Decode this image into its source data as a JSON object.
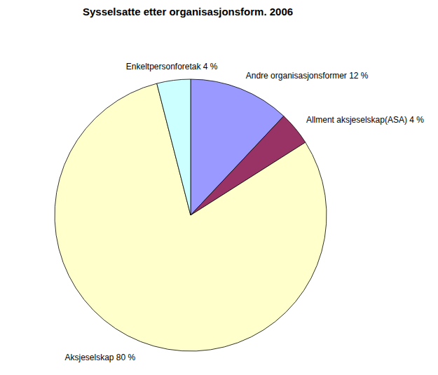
{
  "chart_data": {
    "type": "pie",
    "title": "Sysselsatte etter organisasjonsform. 2006",
    "categories": [
      "Andre organisasjonsformer",
      "Allment aksjeselskap(ASA)",
      "Aksjeselskap",
      "Enkeltpersonforetak"
    ],
    "values": [
      12,
      4,
      80,
      4
    ],
    "value_labels": [
      "12 %",
      "4 %",
      "80 %",
      "4 %"
    ],
    "colors": [
      "#9999ff",
      "#993366",
      "#ffffcc",
      "#ccffff"
    ],
    "data_labels": true
  }
}
